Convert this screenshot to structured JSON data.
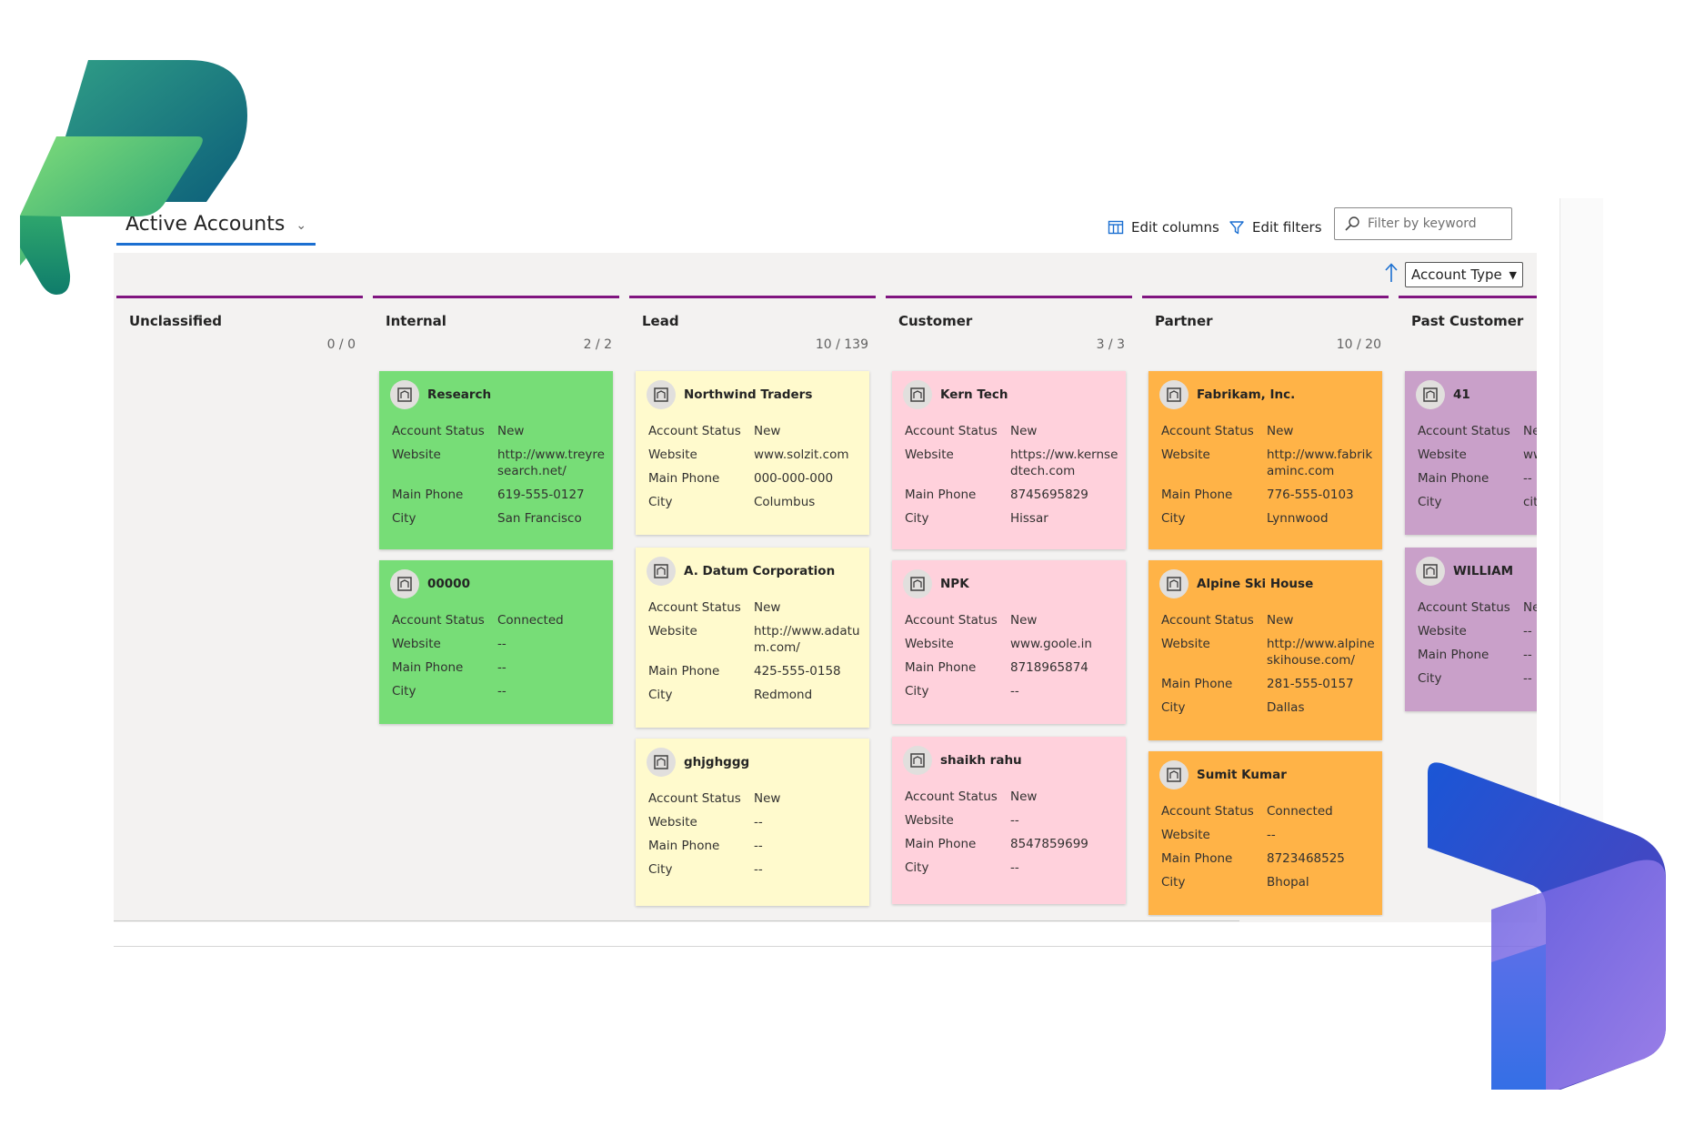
{
  "view": {
    "title": "Active Accounts"
  },
  "toolbar": {
    "edit_columns": "Edit columns",
    "edit_filters": "Edit filters",
    "search_placeholder": "Filter by keyword"
  },
  "sort": {
    "field": "Account Type"
  },
  "field_labels": {
    "status": "Account Status",
    "website": "Website",
    "phone": "Main Phone",
    "city": "City"
  },
  "columns": [
    {
      "name": "Unclassified",
      "count": "0 / 0"
    },
    {
      "name": "Internal",
      "count": "2 / 2"
    },
    {
      "name": "Lead",
      "count": "10 / 139"
    },
    {
      "name": "Customer",
      "count": "3 / 3"
    },
    {
      "name": "Partner",
      "count": "10 / 20"
    },
    {
      "name": "Past Customer",
      "count": ""
    }
  ],
  "cards": {
    "internal": [
      {
        "name": "Research",
        "status": "New",
        "website": "http://www.treyresearch.net/",
        "phone": "619-555-0127",
        "city": "San Francisco"
      },
      {
        "name": "00000",
        "status": "Connected",
        "website": "--",
        "phone": "--",
        "city": "--"
      }
    ],
    "lead": [
      {
        "name": "Northwind Traders",
        "status": "New",
        "website": "www.solzit.com",
        "phone": "000-000-000",
        "city": "Columbus"
      },
      {
        "name": "A. Datum Corporation",
        "status": "New",
        "website": "http://www.adatum.com/",
        "phone": "425-555-0158",
        "city": "Redmond"
      },
      {
        "name": "ghjghggg",
        "status": "New",
        "website": "--",
        "phone": "--",
        "city": "--"
      }
    ],
    "customer": [
      {
        "name": "Kern Tech",
        "status": "New",
        "website": "https://ww.kernsedtech.com",
        "phone": "8745695829",
        "city": "Hissar"
      },
      {
        "name": "NPK",
        "status": "New",
        "website": "www.goole.in",
        "phone": "8718965874",
        "city": "--"
      },
      {
        "name": "shaikh rahu",
        "status": "New",
        "website": "--",
        "phone": "8547859699",
        "city": "--"
      }
    ],
    "partner": [
      {
        "name": "Fabrikam, Inc.",
        "status": "New",
        "website": "http://www.fabrikaminc.com",
        "phone": "776-555-0103",
        "city": "Lynnwood"
      },
      {
        "name": "Alpine Ski House",
        "status": "New",
        "website": "http://www.alpineskihouse.com/",
        "phone": "281-555-0157",
        "city": "Dallas"
      },
      {
        "name": "Sumit Kumar",
        "status": "Connected",
        "website": "--",
        "phone": "8723468525",
        "city": "Bhopal"
      }
    ],
    "past": [
      {
        "name": "41",
        "status": "Ne",
        "website": "ww",
        "phone": "--",
        "city": "city"
      },
      {
        "name": "WILLIAM",
        "status": "Ne",
        "website": "--",
        "phone": "--",
        "city": "--"
      }
    ]
  }
}
